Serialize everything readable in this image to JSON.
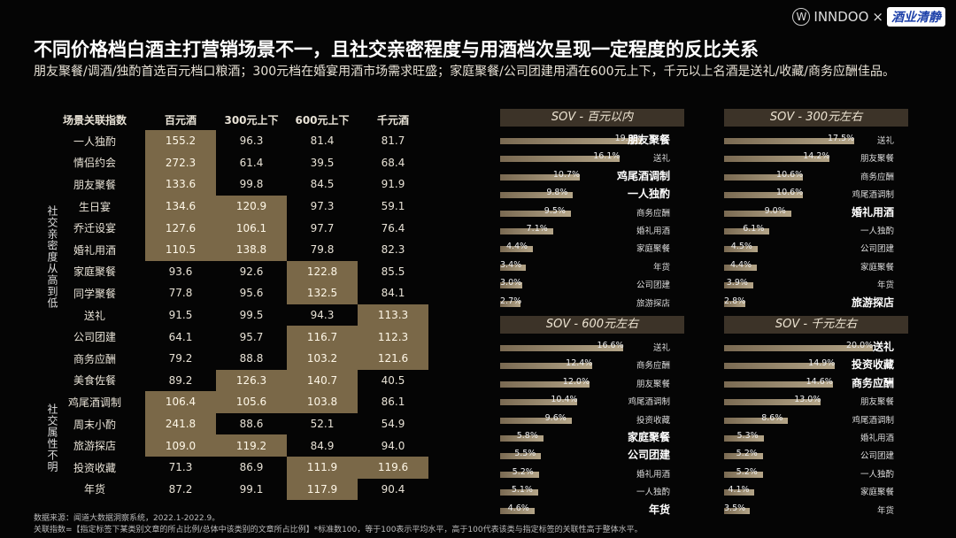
{
  "title": "不同价格档白酒主打营销场景不一，且社交亲密程度与用酒档次呈现一定程度的反比关系",
  "subtitle": "朋友聚餐/调酒/独酌首选百元档口粮酒；300元档在婚宴用酒市场需求旺盛；家庭聚餐/公司团建用酒在600元上下，千元以上名酒是送礼/收藏/商务应酬佳品。",
  "logo": {
    "brand1": "INNDOO",
    "sep": "×",
    "brand2": "酒业清静"
  },
  "group_labels": {
    "social": "社交亲密度从高到低",
    "unclear": "社交属性不明"
  },
  "footer": {
    "source": "数据来源：闻道大数据洞察系统，2022.1-2022.9。",
    "note": "关联指数=【指定标签下某类别文章的所占比例/总体中该类别的文章所占比例】*标准数100，等于100表示平均水平，高于100代表该类与指定标签的关联性高于整体水平。"
  },
  "chart_data": [
    {
      "type": "table",
      "title": "场景关联指数",
      "columns": [
        "百元酒",
        "300元上下",
        "600元上下",
        "千元酒"
      ],
      "rows": [
        {
          "label": "一人独酌",
          "values": [
            "155.2",
            "96.3",
            "81.4",
            "81.7"
          ],
          "highlight": [
            true,
            false,
            false,
            false
          ]
        },
        {
          "label": "情侣约会",
          "values": [
            "272.3",
            "61.4",
            "39.5",
            "68.4"
          ],
          "highlight": [
            true,
            false,
            false,
            false
          ]
        },
        {
          "label": "朋友聚餐",
          "values": [
            "133.6",
            "99.8",
            "84.5",
            "91.9"
          ],
          "highlight": [
            true,
            false,
            false,
            false
          ]
        },
        {
          "label": "生日宴",
          "values": [
            "134.6",
            "120.9",
            "97.3",
            "59.1"
          ],
          "highlight": [
            true,
            true,
            false,
            false
          ]
        },
        {
          "label": "乔迁设宴",
          "values": [
            "127.6",
            "106.1",
            "97.7",
            "76.4"
          ],
          "highlight": [
            true,
            true,
            false,
            false
          ]
        },
        {
          "label": "婚礼用酒",
          "values": [
            "110.5",
            "138.8",
            "79.8",
            "82.3"
          ],
          "highlight": [
            true,
            true,
            false,
            false
          ]
        },
        {
          "label": "家庭聚餐",
          "values": [
            "93.6",
            "92.6",
            "122.8",
            "85.5"
          ],
          "highlight": [
            false,
            false,
            true,
            false
          ]
        },
        {
          "label": "同学聚餐",
          "values": [
            "77.8",
            "95.6",
            "132.5",
            "84.1"
          ],
          "highlight": [
            false,
            false,
            true,
            false
          ]
        },
        {
          "label": "送礼",
          "values": [
            "91.5",
            "99.5",
            "94.3",
            "113.3"
          ],
          "highlight": [
            false,
            false,
            false,
            true
          ]
        },
        {
          "label": "公司团建",
          "values": [
            "64.1",
            "95.7",
            "116.7",
            "112.3"
          ],
          "highlight": [
            false,
            false,
            true,
            true
          ]
        },
        {
          "label": "商务应酬",
          "values": [
            "79.2",
            "88.8",
            "103.2",
            "121.6"
          ],
          "highlight": [
            false,
            false,
            true,
            true
          ]
        },
        {
          "label": "美食佐餐",
          "values": [
            "89.2",
            "126.3",
            "140.7",
            "40.5"
          ],
          "highlight": [
            false,
            true,
            true,
            false
          ]
        },
        {
          "label": "鸡尾酒调制",
          "values": [
            "106.4",
            "105.6",
            "103.8",
            "86.1"
          ],
          "highlight": [
            true,
            true,
            true,
            false
          ]
        },
        {
          "label": "周末小酌",
          "values": [
            "241.8",
            "88.6",
            "52.1",
            "54.9"
          ],
          "highlight": [
            true,
            false,
            false,
            false
          ]
        },
        {
          "label": "旅游探店",
          "values": [
            "109.0",
            "119.2",
            "84.9",
            "94.0"
          ],
          "highlight": [
            true,
            true,
            false,
            false
          ]
        },
        {
          "label": "投资收藏",
          "values": [
            "71.3",
            "86.9",
            "111.9",
            "119.6"
          ],
          "highlight": [
            false,
            false,
            true,
            true
          ]
        },
        {
          "label": "年货",
          "values": [
            "87.2",
            "99.1",
            "117.9",
            "90.4"
          ],
          "highlight": [
            false,
            false,
            true,
            false
          ]
        }
      ]
    },
    {
      "type": "bar",
      "title": "SOV - 百元以内",
      "xmax": 20,
      "categories": [
        "朋友聚餐",
        "送礼",
        "鸡尾酒调制",
        "一人独酌",
        "商务应酬",
        "婚礼用酒",
        "家庭聚餐",
        "年货",
        "公司团建",
        "旅游探店"
      ],
      "values": [
        19.0,
        16.1,
        10.7,
        9.8,
        9.5,
        7.1,
        4.4,
        3.4,
        3.0,
        2.7
      ],
      "labels": [
        "19.0%",
        "16.1%",
        "10.7%",
        "9.8%",
        "9.5%",
        "7.1%",
        "4.4%",
        "3.4%",
        "3.0%",
        "2.7%"
      ],
      "emphasis": [
        true,
        false,
        true,
        true,
        false,
        false,
        false,
        false,
        false,
        false
      ]
    },
    {
      "type": "bar",
      "title": "SOV - 300元左右",
      "xmax": 20,
      "categories": [
        "送礼",
        "朋友聚餐",
        "商务应酬",
        "鸡尾酒调制",
        "婚礼用酒",
        "一人独酌",
        "公司团建",
        "家庭聚餐",
        "年货",
        "旅游探店"
      ],
      "values": [
        17.5,
        14.2,
        10.6,
        10.6,
        9.0,
        6.1,
        4.5,
        4.4,
        3.9,
        2.8
      ],
      "labels": [
        "17.5%",
        "14.2%",
        "10.6%",
        "10.6%",
        "9.0%",
        "6.1%",
        "4.5%",
        "4.4%",
        "3.9%",
        "2.8%"
      ],
      "emphasis": [
        false,
        false,
        false,
        false,
        true,
        false,
        false,
        false,
        false,
        true
      ]
    },
    {
      "type": "bar",
      "title": "SOV - 600元左右",
      "xmax": 20,
      "categories": [
        "送礼",
        "商务应酬",
        "朋友聚餐",
        "鸡尾酒调制",
        "投资收藏",
        "家庭聚餐",
        "公司团建",
        "婚礼用酒",
        "一人独酌",
        "年货"
      ],
      "values": [
        16.6,
        12.4,
        12.0,
        10.4,
        9.6,
        5.8,
        5.5,
        5.2,
        5.1,
        4.6
      ],
      "labels": [
        "16.6%",
        "12.4%",
        "12.0%",
        "10.4%",
        "9.6%",
        "5.8%",
        "5.5%",
        "5.2%",
        "5.1%",
        "4.6%"
      ],
      "emphasis": [
        false,
        false,
        false,
        false,
        false,
        true,
        true,
        false,
        false,
        true
      ]
    },
    {
      "type": "bar",
      "title": "SOV - 千元左右",
      "xmax": 20,
      "categories": [
        "送礼",
        "投资收藏",
        "商务应酬",
        "朋友聚餐",
        "鸡尾酒调制",
        "婚礼用酒",
        "公司团建",
        "一人独酌",
        "家庭聚餐",
        "年货"
      ],
      "values": [
        20.0,
        14.9,
        14.6,
        13.0,
        8.6,
        5.3,
        5.2,
        5.2,
        4.1,
        3.5
      ],
      "labels": [
        "20.0%",
        "14.9%",
        "14.6%",
        "13.0%",
        "8.6%",
        "5.3%",
        "5.2%",
        "5.2%",
        "4.1%",
        "3.5%"
      ],
      "emphasis": [
        true,
        true,
        true,
        false,
        false,
        false,
        false,
        false,
        false,
        false
      ]
    }
  ]
}
